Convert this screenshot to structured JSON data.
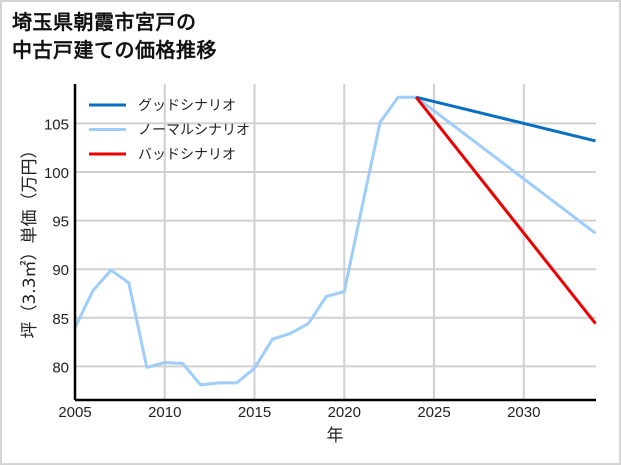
{
  "title": {
    "line1": "埼玉県朝霞市宮戸の",
    "line2": "中古戸建ての価格推移"
  },
  "axes": {
    "xlabel": "年",
    "ylabel": "坪（3.3㎡）単価（万円）"
  },
  "colors": {
    "good": "#0a6fc2",
    "normal": "#9ecdfa",
    "bad": "#ee0000",
    "grid": "#d0d0d0",
    "axis": "#000000"
  },
  "legend": [
    {
      "label": "グッドシナリオ",
      "color": "#0a6fc2"
    },
    {
      "label": "ノーマルシナリオ",
      "color": "#9ecdfa"
    },
    {
      "label": "バッドシナリオ",
      "color": "#ee0000"
    }
  ],
  "chart_data": {
    "type": "line",
    "title": "埼玉県朝霞市宮戸の中古戸建ての価格推移",
    "xlabel": "年",
    "ylabel": "坪（3.3㎡）単価（万円）",
    "xlim": [
      2005,
      2034
    ],
    "ylim": [
      76.8,
      109
    ],
    "xticks": [
      2005,
      2010,
      2015,
      2020,
      2025,
      2030
    ],
    "yticks": [
      80,
      85,
      90,
      95,
      100,
      105
    ],
    "grid": true,
    "legend_position": "upper left",
    "series": [
      {
        "name": "ノーマルシナリオ",
        "color": "#9ecdfa",
        "x": [
          2005,
          2006,
          2007,
          2008,
          2009,
          2010,
          2011,
          2012,
          2013,
          2014,
          2015,
          2016,
          2017,
          2018,
          2019,
          2020,
          2021,
          2022,
          2023,
          2024,
          2034
        ],
        "y": [
          84.0,
          87.8,
          89.9,
          88.6,
          79.9,
          80.4,
          80.3,
          78.1,
          78.3,
          78.3,
          79.8,
          82.8,
          83.4,
          84.4,
          87.2,
          87.7,
          96.5,
          105.1,
          107.7,
          107.7,
          93.7
        ]
      },
      {
        "name": "グッドシナリオ",
        "color": "#0a6fc2",
        "x": [
          2024,
          2034
        ],
        "y": [
          107.7,
          103.2
        ]
      },
      {
        "name": "バッドシナリオ",
        "color": "#ee0000",
        "x": [
          2024,
          2034
        ],
        "y": [
          107.7,
          84.4
        ]
      }
    ]
  }
}
